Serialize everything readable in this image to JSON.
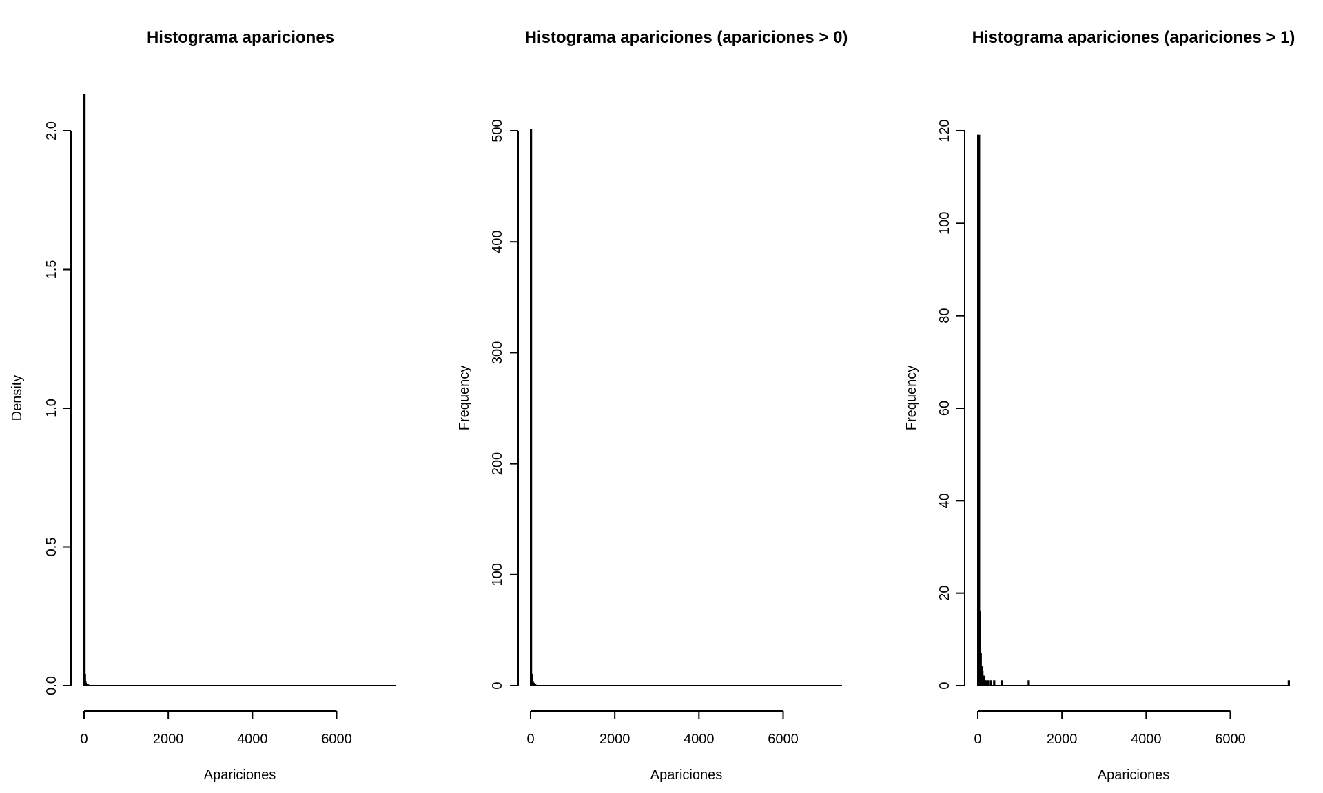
{
  "chart_data": [
    {
      "type": "bar",
      "title": "Histograma apariciones",
      "xlabel": "Apariciones",
      "ylabel": "Density",
      "xlim": [
        0,
        7400
      ],
      "ylim": [
        0,
        2.0
      ],
      "x_ticks": [
        0,
        2000,
        4000,
        6000
      ],
      "x_tick_labels": [
        "0",
        "2000",
        "4000",
        "6000"
      ],
      "y_ticks": [
        0.0,
        0.5,
        1.0,
        1.5,
        2.0
      ],
      "y_tick_labels": [
        "0.0",
        "0.5",
        "1.0",
        "1.5",
        "2.0"
      ],
      "bins": [
        {
          "x0": 0,
          "x1": 10,
          "value": 2.13
        },
        {
          "x0": 10,
          "x1": 20,
          "value": 0.04
        },
        {
          "x0": 20,
          "x1": 30,
          "value": 0.015
        },
        {
          "x0": 30,
          "x1": 40,
          "value": 0.008
        },
        {
          "x0": 40,
          "x1": 50,
          "value": 0.005
        },
        {
          "x0": 50,
          "x1": 60,
          "value": 0.004
        },
        {
          "x0": 60,
          "x1": 70,
          "value": 0.003
        },
        {
          "x0": 70,
          "x1": 80,
          "value": 0.002
        },
        {
          "x0": 80,
          "x1": 90,
          "value": 0.002
        },
        {
          "x0": 90,
          "x1": 100,
          "value": 0.001
        }
      ]
    },
    {
      "type": "bar",
      "title": "Histograma apariciones (apariciones > 0)",
      "xlabel": "Apariciones",
      "ylabel": "Frequency",
      "xlim": [
        0,
        7400
      ],
      "ylim": [
        0,
        500
      ],
      "x_ticks": [
        0,
        2000,
        4000,
        6000
      ],
      "x_tick_labels": [
        "0",
        "2000",
        "4000",
        "6000"
      ],
      "y_ticks": [
        0,
        100,
        200,
        300,
        400,
        500
      ],
      "y_tick_labels": [
        "0",
        "100",
        "200",
        "300",
        "400",
        "500"
      ],
      "bins": [
        {
          "x0": 0,
          "x1": 20,
          "value": 501
        },
        {
          "x0": 20,
          "x1": 40,
          "value": 10
        },
        {
          "x0": 40,
          "x1": 60,
          "value": 3
        },
        {
          "x0": 60,
          "x1": 80,
          "value": 2
        },
        {
          "x0": 80,
          "x1": 100,
          "value": 1
        },
        {
          "x0": 100,
          "x1": 120,
          "value": 1
        }
      ]
    },
    {
      "type": "bar",
      "title": "Histograma apariciones (apariciones > 1)",
      "xlabel": "Apariciones",
      "ylabel": "Frequency",
      "xlim": [
        0,
        7400
      ],
      "ylim": [
        0,
        120
      ],
      "x_ticks": [
        0,
        2000,
        4000,
        6000
      ],
      "x_tick_labels": [
        "0",
        "2000",
        "4000",
        "6000"
      ],
      "y_ticks": [
        0,
        20,
        40,
        60,
        80,
        100,
        120
      ],
      "y_tick_labels": [
        "0",
        "20",
        "40",
        "60",
        "80",
        "100",
        "120"
      ],
      "bins": [
        {
          "x0": 0,
          "x1": 20,
          "value": 119
        },
        {
          "x0": 20,
          "x1": 40,
          "value": 119
        },
        {
          "x0": 40,
          "x1": 60,
          "value": 16
        },
        {
          "x0": 60,
          "x1": 80,
          "value": 7
        },
        {
          "x0": 80,
          "x1": 100,
          "value": 4
        },
        {
          "x0": 100,
          "x1": 120,
          "value": 3
        },
        {
          "x0": 120,
          "x1": 140,
          "value": 2
        },
        {
          "x0": 140,
          "x1": 160,
          "value": 2
        },
        {
          "x0": 160,
          "x1": 180,
          "value": 1
        },
        {
          "x0": 200,
          "x1": 220,
          "value": 1
        },
        {
          "x0": 240,
          "x1": 260,
          "value": 1
        },
        {
          "x0": 300,
          "x1": 320,
          "value": 1
        },
        {
          "x0": 380,
          "x1": 400,
          "value": 1
        },
        {
          "x0": 560,
          "x1": 580,
          "value": 1
        },
        {
          "x0": 1200,
          "x1": 1220,
          "value": 1
        },
        {
          "x0": 7380,
          "x1": 7400,
          "value": 1
        }
      ]
    }
  ]
}
